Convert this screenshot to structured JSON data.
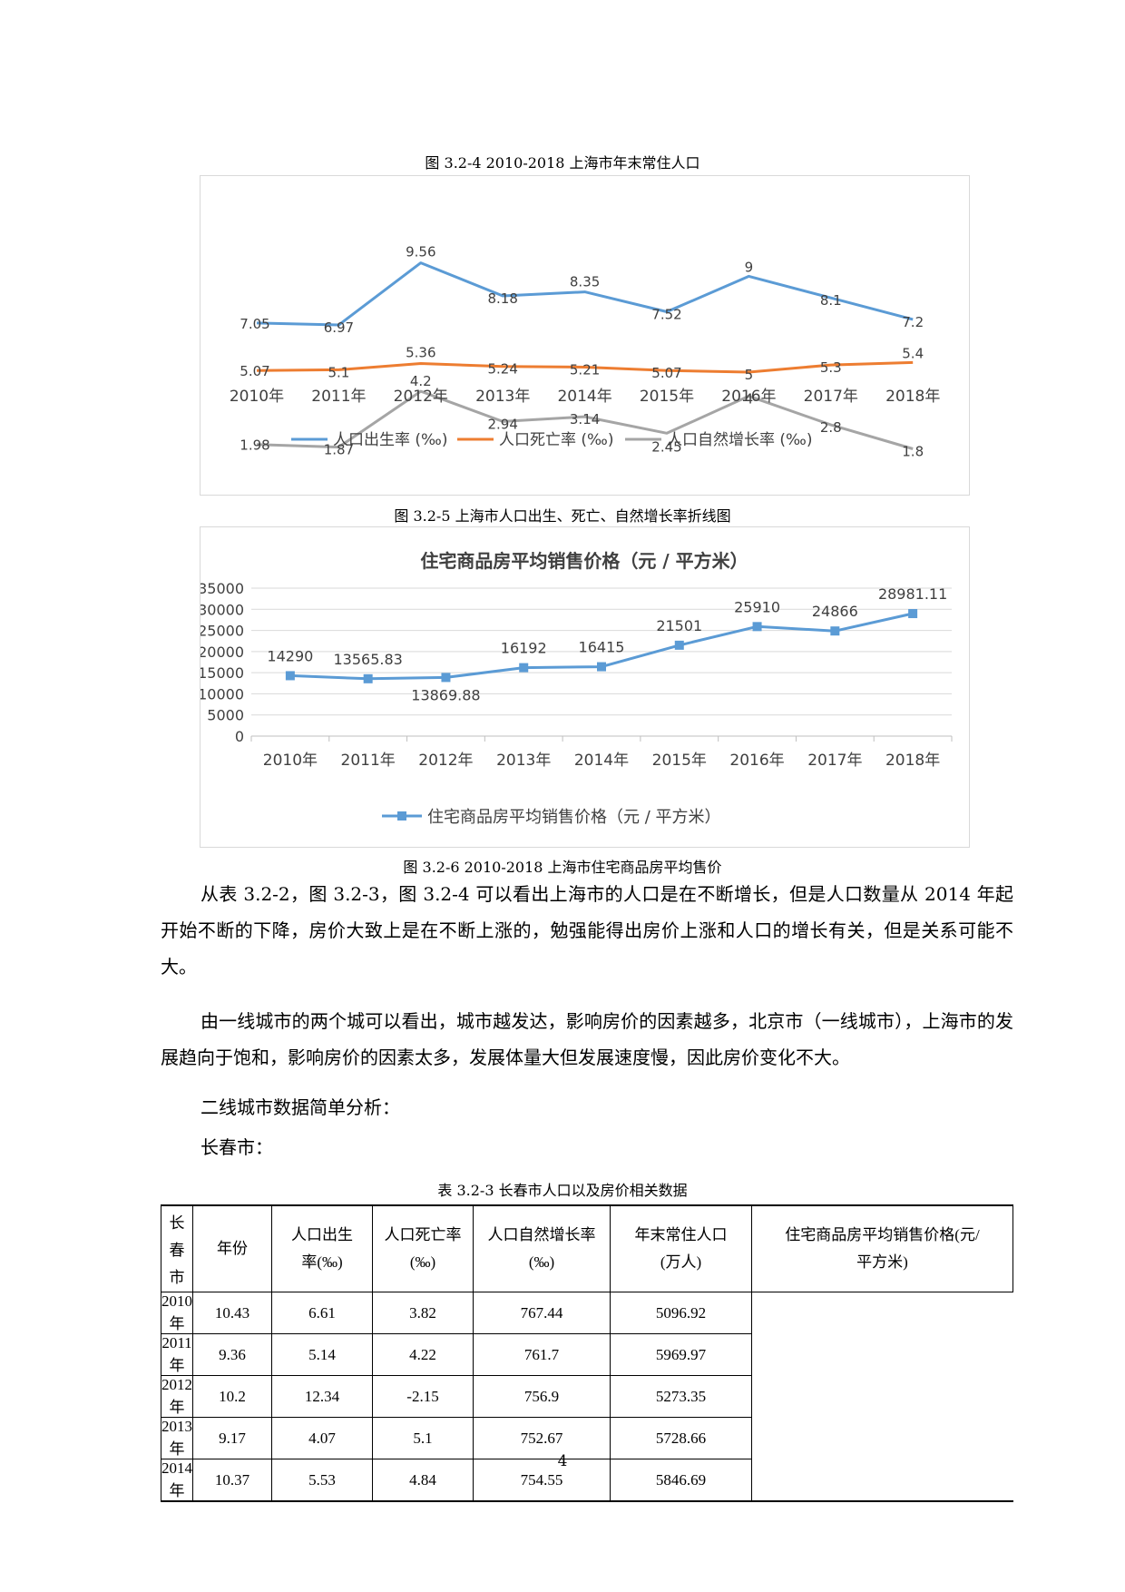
{
  "captions": {
    "fig324": "图 3.2-4  2010-2018 上海市年末常住人口",
    "fig325": "图 3.2-5  上海市人口出生、死亡、自然增长率折线图",
    "fig326": "图 3.2-6  2010-2018 上海市住宅商品房平均售价",
    "table323": "表 3.2-3  长春市人口以及房价相关数据"
  },
  "chart_data": [
    {
      "type": "line",
      "categories": [
        "2010年",
        "2011年",
        "2012年",
        "2013年",
        "2014年",
        "2015年",
        "2016年",
        "2017年",
        "2018年"
      ],
      "series": [
        {
          "name": "人口出生率 (‰)",
          "color": "#5b9bd5",
          "values": [
            7.05,
            6.97,
            9.56,
            8.18,
            8.35,
            7.52,
            9,
            8.1,
            7.2
          ],
          "labels": [
            "7.05",
            "6.97",
            "9.56",
            "8.18",
            "8.35",
            "7.52",
            "9",
            "8.1",
            "7.2"
          ]
        },
        {
          "name": "人口死亡率 (‰)",
          "color": "#ed7d31",
          "values": [
            5.07,
            5.1,
            5.36,
            5.24,
            5.21,
            5.07,
            5,
            5.3,
            5.4
          ],
          "labels": [
            "5.07",
            "5.1",
            "5.36",
            "5.24",
            "5.21",
            "5.07",
            "5",
            "5.3",
            "5.4"
          ]
        },
        {
          "name": "人口自然增长率 (‰)",
          "color": "#a5a5a5",
          "values": [
            1.98,
            1.87,
            4.2,
            2.94,
            3.14,
            2.45,
            4,
            2.8,
            1.8
          ],
          "labels": [
            "1.98",
            "1.87",
            "4.2",
            "2.94",
            "3.14",
            "2.45",
            "4",
            "2.8",
            "1.8"
          ]
        }
      ],
      "legend_position": "bottom",
      "grid": false
    },
    {
      "type": "line",
      "title": "住宅商品房平均销售价格（元 / 平方米）",
      "categories": [
        "2010年",
        "2011年",
        "2012年",
        "2013年",
        "2014年",
        "2015年",
        "2016年",
        "2017年",
        "2018年"
      ],
      "series": [
        {
          "name": "住宅商品房平均销售价格（元 / 平方米）",
          "color": "#5b9bd5",
          "marker": "square",
          "values": [
            14290,
            13565.83,
            13869.88,
            16192,
            16415,
            21501,
            25910,
            24866,
            28981.11
          ],
          "labels": [
            "14290",
            "13565.83",
            "13869.88",
            "16192",
            "16415",
            "21501",
            "25910",
            "24866",
            "28981.11"
          ]
        }
      ],
      "yticks": [
        "35000",
        "30000",
        "25000",
        "20000",
        "15000",
        "10000",
        "5000",
        "0"
      ],
      "ylim": [
        0,
        35000
      ],
      "grid": true,
      "legend_position": "bottom"
    }
  ],
  "paragraphs": {
    "p1": "从表 3.2-2，图 3.2-3，图 3.2-4 可以看出上海市的人口是在不断增长，但是人口数量从 2014 年起开始不断的下降，房价大致上是在不断上涨的，勉强能得出房价上涨和人口的增长有关，但是关系可能不大。",
    "p2": "由一线城市的两个城可以看出，城市越发达，影响房价的因素越多，北京市（一线城市），上海市的发展趋向于饱和，影响房价的因素太多，发展体量大但发展速度慢，因此房价变化不大。",
    "p3": "二线城市数据简单分析：",
    "p4": "长春市："
  },
  "table": {
    "city": "长春市",
    "headers": [
      "年份",
      "人口出生率(‰)",
      "人口死亡率(‰)",
      "人口自然增长率(‰)",
      "年末常住人口(万人)",
      "住宅商品房平均销售价格(元/平方米)"
    ],
    "rows": [
      [
        "2010 年",
        "10.43",
        "6.61",
        "3.82",
        "767.44",
        "5096.92"
      ],
      [
        "2011 年",
        "9.36",
        "5.14",
        "4.22",
        "761.7",
        "5969.97"
      ],
      [
        "2012 年",
        "10.2",
        "12.34",
        "-2.15",
        "756.9",
        "5273.35"
      ],
      [
        "2013 年",
        "9.17",
        "4.07",
        "5.1",
        "752.67",
        "5728.66"
      ],
      [
        "2014 年",
        "10.37",
        "5.53",
        "4.84",
        "754.55",
        "5846.69"
      ]
    ]
  },
  "page_number": "4"
}
